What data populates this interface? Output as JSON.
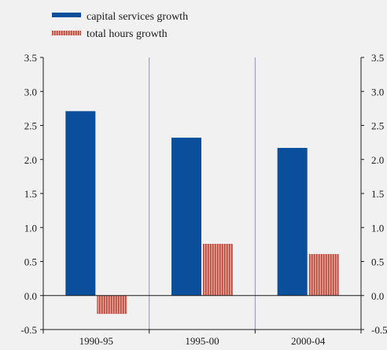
{
  "chart_data": {
    "type": "bar",
    "categories": [
      "1990-95",
      "1995-00",
      "2000-04"
    ],
    "series": [
      {
        "name": "capital services growth",
        "values": [
          2.71,
          2.32,
          2.17
        ],
        "color": "#0a4f9c",
        "pattern": "solid"
      },
      {
        "name": "total hours growth",
        "values": [
          -0.27,
          0.76,
          0.61
        ],
        "color": "#d9786c",
        "pattern": "vertical-stripes"
      }
    ],
    "ylim": [
      -0.5,
      3.5
    ],
    "yticks": [
      "-0.5",
      "0.0",
      "0.5",
      "1.0",
      "1.5",
      "2.0",
      "2.5",
      "3.0",
      "3.5"
    ],
    "ytick_values": [
      -0.5,
      0.0,
      0.5,
      1.0,
      1.5,
      2.0,
      2.5,
      3.0,
      3.5
    ],
    "grid": "vertical",
    "legend": "top-left",
    "title": "",
    "xlabel": "",
    "ylabel": ""
  },
  "colors": {
    "background": "#f1f1f1",
    "gridline": "#8a93c8",
    "axis": "#1a1a1a",
    "stripe_dark": "#b5473d"
  }
}
